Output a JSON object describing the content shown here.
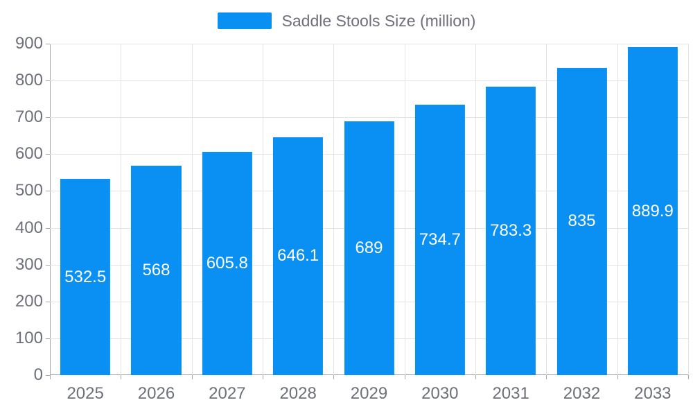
{
  "legend": {
    "label": "Saddle Stools Size (million)",
    "swatch_color": "#0a90f2"
  },
  "chart_data": {
    "type": "bar",
    "title": "",
    "legend_entries": [
      "Saddle Stools Size (million)"
    ],
    "legend_position": "top-center",
    "categories": [
      "2025",
      "2026",
      "2027",
      "2028",
      "2029",
      "2030",
      "2031",
      "2032",
      "2033"
    ],
    "series": [
      {
        "name": "Saddle Stools Size (million)",
        "values": [
          532.5,
          568,
          605.8,
          646.1,
          689,
          734.7,
          783.3,
          835,
          889.9
        ],
        "color": "#0a90f2"
      }
    ],
    "value_labels": {
      "position": "inside-center",
      "color": "#ffffff"
    },
    "xlabel": "",
    "ylabel": "",
    "ylim": [
      0,
      900
    ],
    "ytick_step": 100,
    "grid": "on",
    "grid_color": "#e4e4e8",
    "axis_color": "#a4a6aa",
    "text_color": "#6e7079",
    "background_color": "#ffffff"
  }
}
